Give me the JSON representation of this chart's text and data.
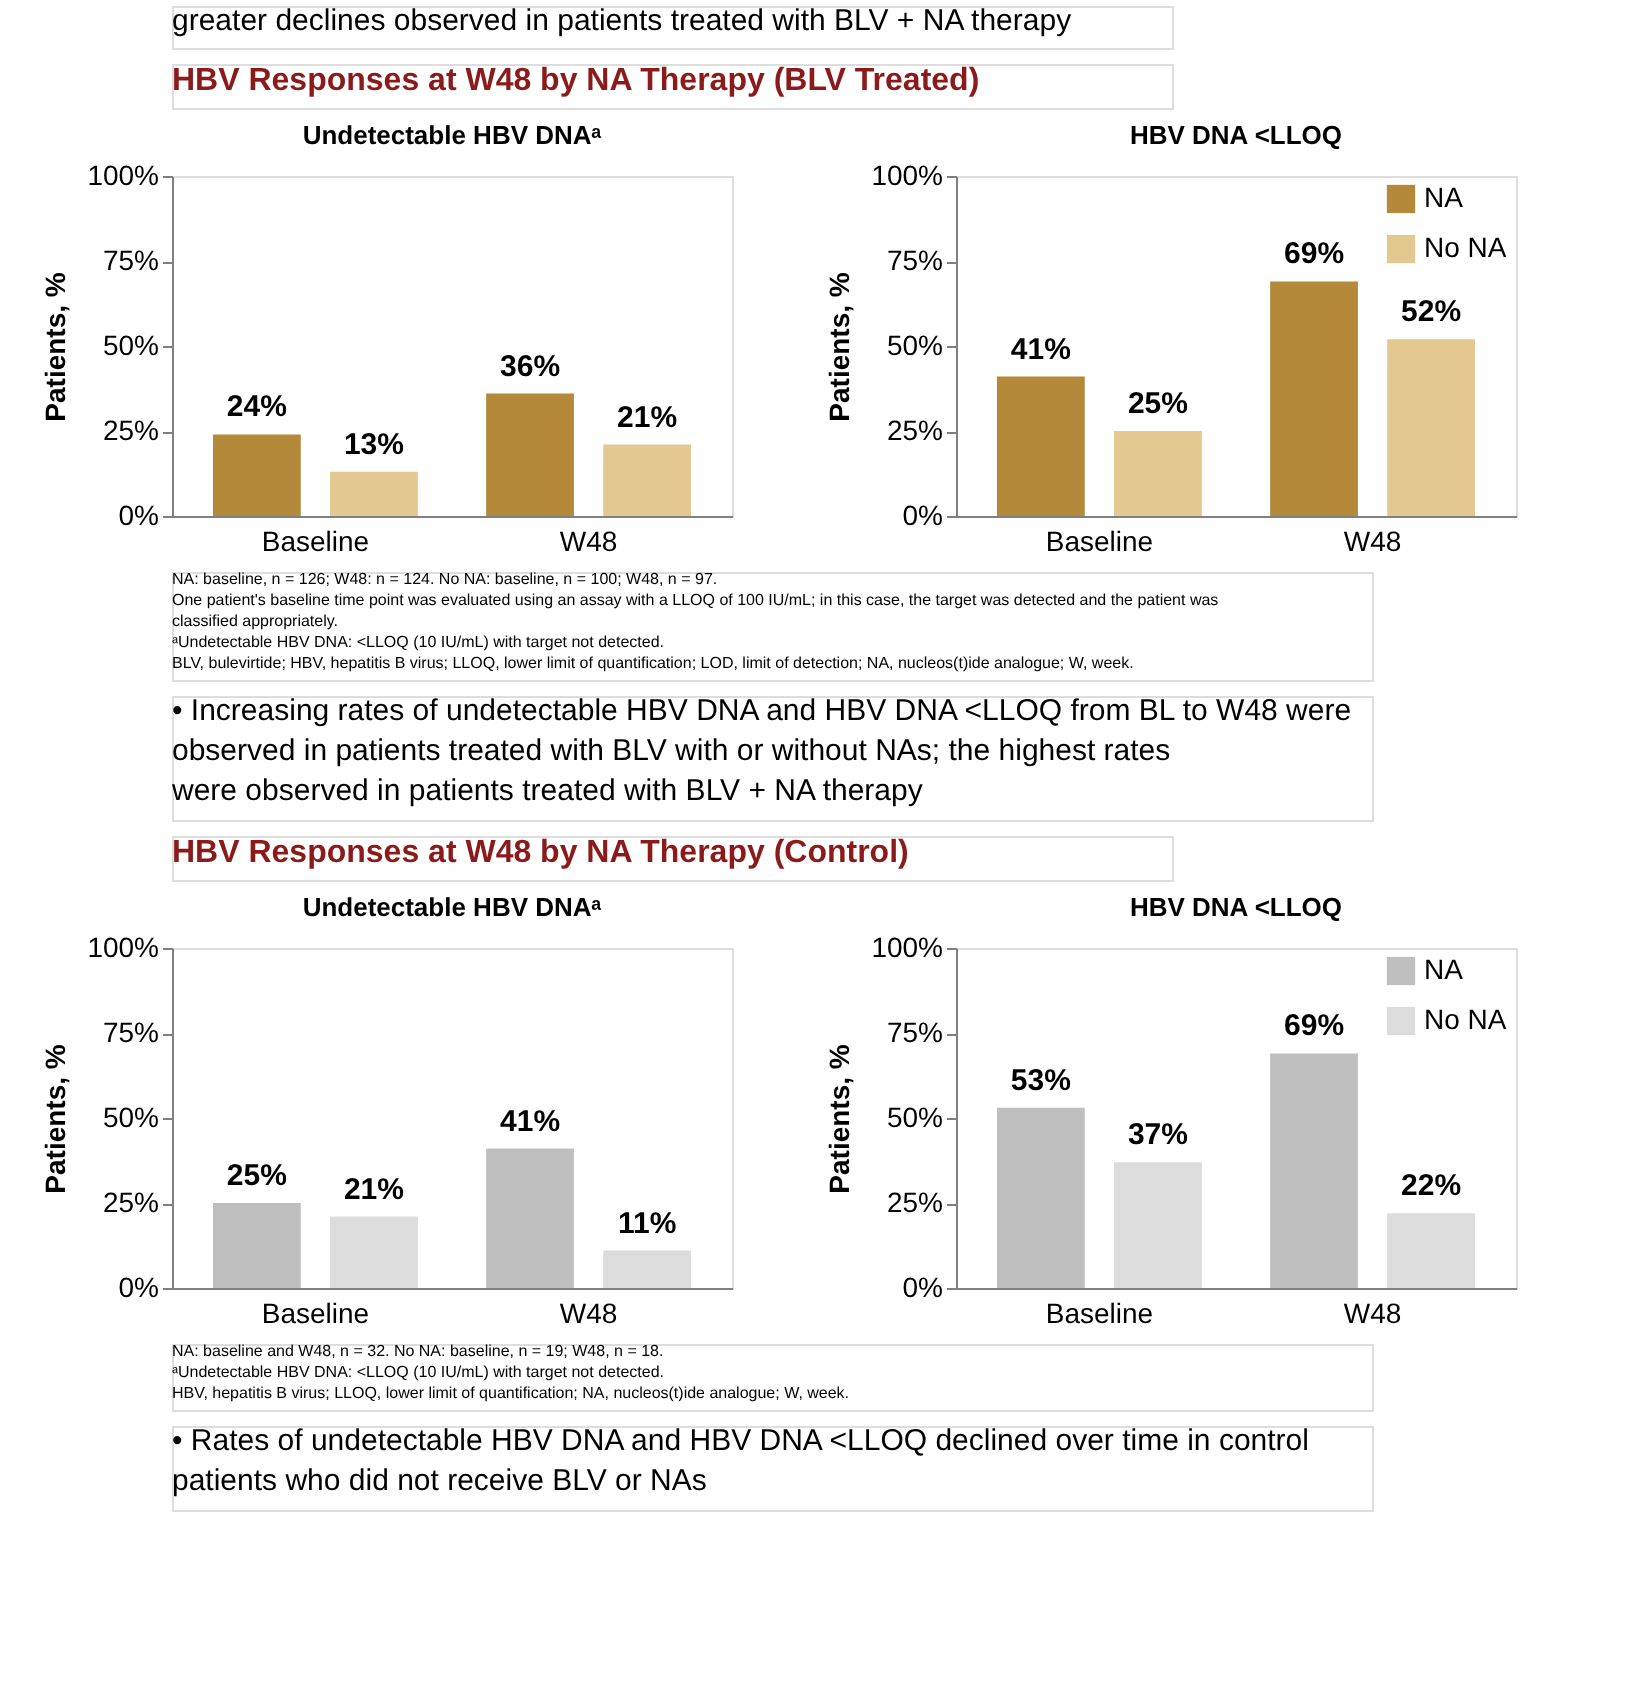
{
  "chart_data": [
    {
      "type": "bar",
      "title": "HBV Responses at W48 by NA Therapy (BLV Treated)",
      "subtitle": "Undetectable HBV DNAᵃ",
      "ylabel": "Patients, %",
      "categories": [
        "Baseline",
        "W48"
      ],
      "series": [
        {
          "color": "#b5893a",
          "values": [
            24,
            36
          ],
          "value_labels": [
            "24%",
            "36%"
          ]
        },
        {
          "color": "#e3c98f",
          "values": [
            13,
            21
          ],
          "value_labels": [
            "13%",
            "21%"
          ]
        }
      ],
      "ylim": [
        0,
        100
      ],
      "yticks": [
        {
          "value": 0,
          "label": "0%"
        },
        {
          "value": 25,
          "label": "25%"
        },
        {
          "value": 50,
          "label": "50%"
        },
        {
          "value": 75,
          "label": "75%"
        },
        {
          "value": 100,
          "label": "100%"
        }
      ],
      "grid": false,
      "legend": false,
      "annotations": [
        "greater declines observed in patients treated with BLV + NA therapy",
        "NA: baseline, n = 126; W48: n = 124. No NA: baseline, n = 100; W48, n = 97.",
        "One patient's baseline time point was evaluated using an assay with a LLOQ of 100 IU/mL; in this case, the target was detected and the patient was classified appropriately.",
        "ᵃUndetectable HBV DNA: <LLOQ (10 IU/mL) with target not detected.",
        "BLV, bulevirtide; HBV, hepatitis B virus; LLOQ, lower limit of quantification; LOD, limit of detection; NA, nucleos(t)ide analogue; W, week."
      ]
    },
    {
      "type": "bar",
      "title": "HBV DNA <LLOQ",
      "ylabel": "Patients, %",
      "categories": [
        "Baseline",
        "W48"
      ],
      "series": [
        {
          "name": "NA",
          "color": "#b5893a",
          "values": [
            41,
            69
          ],
          "value_labels": [
            "41%",
            "69%"
          ]
        },
        {
          "name": "No NA",
          "color": "#e3c98f",
          "values": [
            25,
            52
          ],
          "value_labels": [
            "25%",
            "52%"
          ]
        }
      ],
      "ylim": [
        0,
        100
      ],
      "yticks": [
        {
          "value": 0,
          "label": "0%"
        },
        {
          "value": 25,
          "label": "25%"
        },
        {
          "value": 50,
          "label": "50%"
        },
        {
          "value": 75,
          "label": "75%"
        },
        {
          "value": 100,
          "label": "100%"
        }
      ],
      "grid": false,
      "legend": "top right",
      "annotations": [
        "• Increasing rates of undetectable HBV DNA and HBV DNA <LLOQ from BL to W48 were observed in patients treated with BLV with or without NAs; the highest rates were observed in patients treated with BLV + NA therapy"
      ]
    },
    {
      "type": "bar",
      "title": "HBV Responses at W48 by NA Therapy (Control)",
      "subtitle": "Undetectable HBV DNAᵃ",
      "ylabel": "Patients, %",
      "categories": [
        "Baseline",
        "W48"
      ],
      "series": [
        {
          "color": "#bfbfbf",
          "values": [
            25,
            41
          ],
          "value_labels": [
            "25%",
            "41%"
          ]
        },
        {
          "color": "#dcdcdc",
          "values": [
            21,
            11
          ],
          "value_labels": [
            "21%",
            "11%"
          ]
        }
      ],
      "ylim": [
        0,
        100
      ],
      "yticks": [
        {
          "value": 0,
          "label": "0%"
        },
        {
          "value": 25,
          "label": "25%"
        },
        {
          "value": 50,
          "label": "50%"
        },
        {
          "value": 75,
          "label": "75%"
        },
        {
          "value": 100,
          "label": "100%"
        }
      ],
      "grid": false,
      "legend": false,
      "annotations": [
        "NA: baseline and W48, n = 32. No NA: baseline, n = 19; W48, n = 18.",
        "ᵃUndetectable HBV DNA: <LLOQ (10 IU/mL) with target not detected.",
        "HBV, hepatitis B virus; LLOQ, lower limit of quantification; NA, nucleos(t)ide analogue; W, week."
      ]
    },
    {
      "type": "bar",
      "title": "HBV DNA <LLOQ",
      "ylabel": "Patients, %",
      "categories": [
        "Baseline",
        "W48"
      ],
      "series": [
        {
          "name": "NA",
          "color": "#bfbfbf",
          "values": [
            53,
            69
          ],
          "value_labels": [
            "53%",
            "69%"
          ]
        },
        {
          "name": "No NA",
          "color": "#dcdcdc",
          "values": [
            37,
            22
          ],
          "value_labels": [
            "37%",
            "22%"
          ]
        }
      ],
      "ylim": [
        0,
        100
      ],
      "yticks": [
        {
          "value": 0,
          "label": "0%"
        },
        {
          "value": 25,
          "label": "25%"
        },
        {
          "value": 50,
          "label": "50%"
        },
        {
          "value": 75,
          "label": "75%"
        },
        {
          "value": 100,
          "label": "100%"
        }
      ],
      "grid": false,
      "legend": "top right",
      "annotations": [
        "• Rates of undetectable HBV DNA and HBV DNA <LLOQ declined over time in control patients who did not receive BLV or NAs"
      ]
    }
  ]
}
